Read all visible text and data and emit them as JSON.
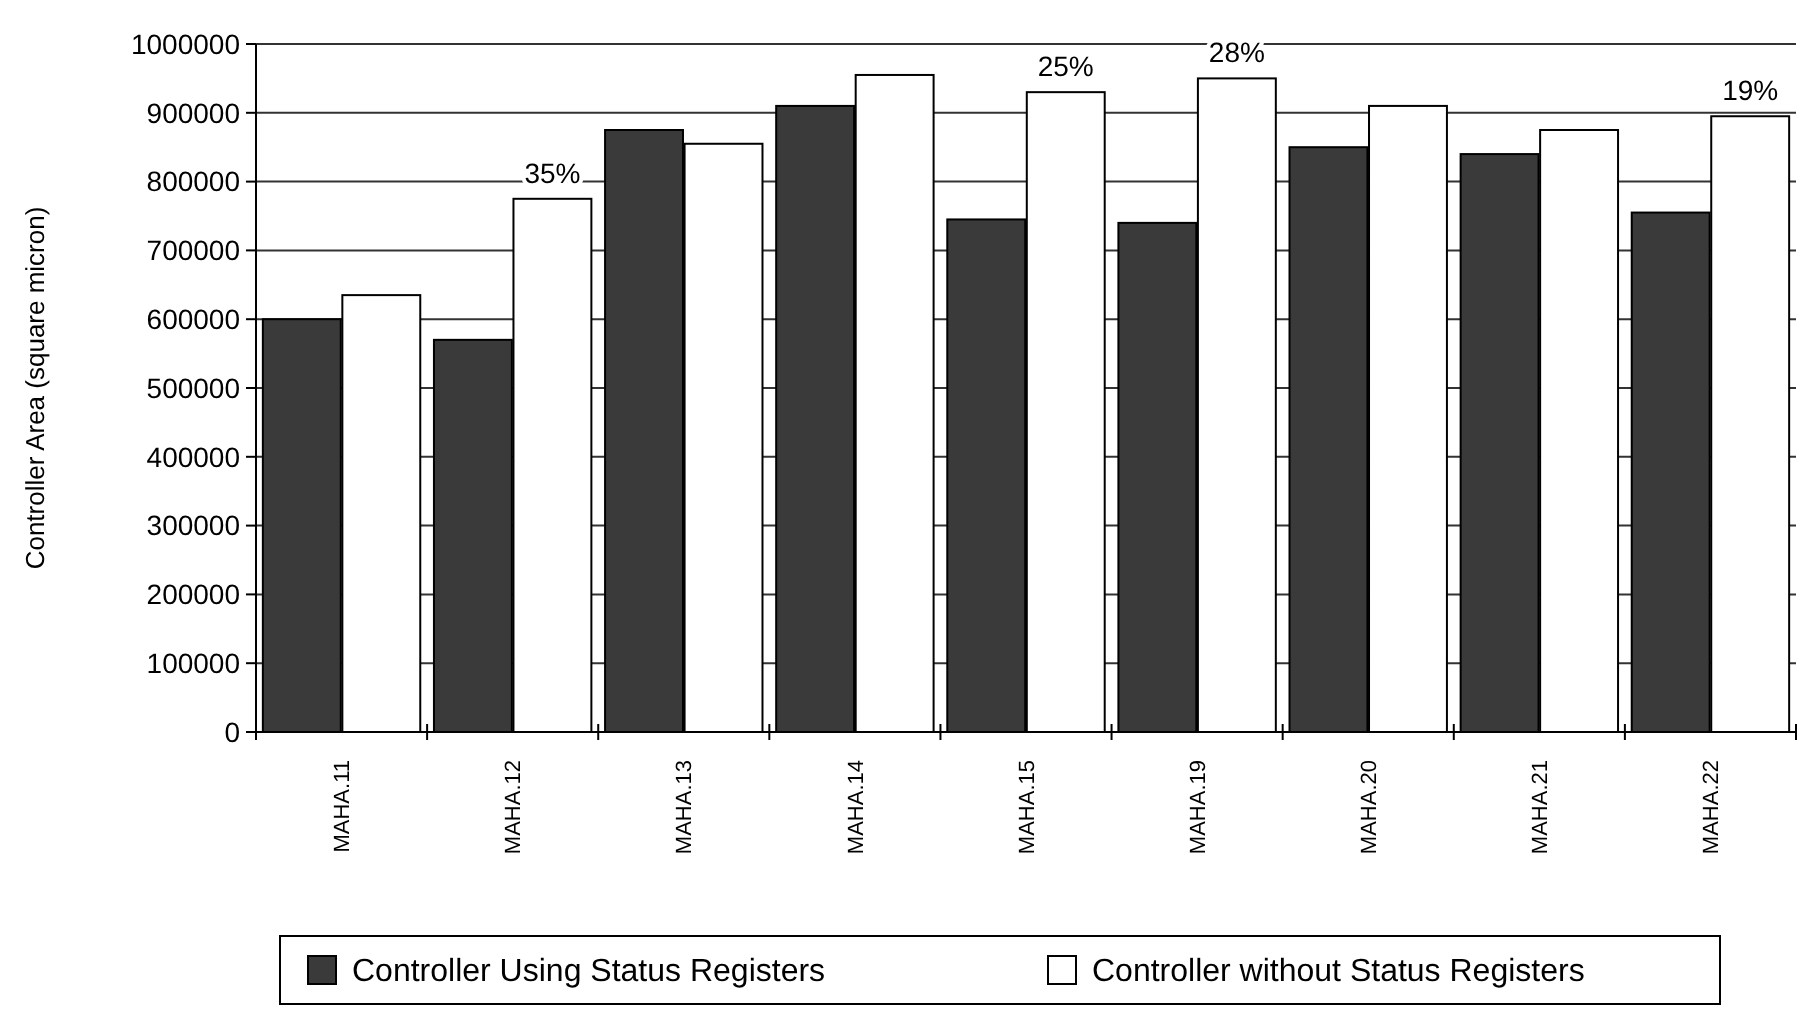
{
  "chart_data": {
    "type": "bar",
    "ylabel": "Controller Area (square micron)",
    "categories": [
      "MAHA.11",
      "MAHA.12",
      "MAHA.13",
      "MAHA.14",
      "MAHA.15",
      "MAHA.19",
      "MAHA.20",
      "MAHA.21",
      "MAHA.22"
    ],
    "series": [
      {
        "name": "Controller Using Status Registers",
        "color": "#3a3a3a",
        "values": [
          600000,
          570000,
          875000,
          910000,
          745000,
          740000,
          850000,
          840000,
          755000
        ]
      },
      {
        "name": "Controller without Status Registers",
        "color": "#ffffff",
        "values": [
          635000,
          775000,
          855000,
          955000,
          930000,
          950000,
          910000,
          875000,
          895000
        ]
      }
    ],
    "ylim": [
      0,
      1000000
    ],
    "yticks": [
      0,
      100000,
      200000,
      300000,
      400000,
      500000,
      600000,
      700000,
      800000,
      900000,
      1000000
    ],
    "grid": "y",
    "legend": "bottom",
    "annotations": [
      {
        "text": "35%",
        "x": "MAHA.12",
        "y": 775000
      },
      {
        "text": "25%",
        "x": "MAHA.15",
        "y": 930000
      },
      {
        "text": "28%",
        "x": "MAHA.19",
        "y": 950000
      },
      {
        "text": "19%",
        "x": "MAHA.22",
        "y": 895000
      }
    ]
  }
}
